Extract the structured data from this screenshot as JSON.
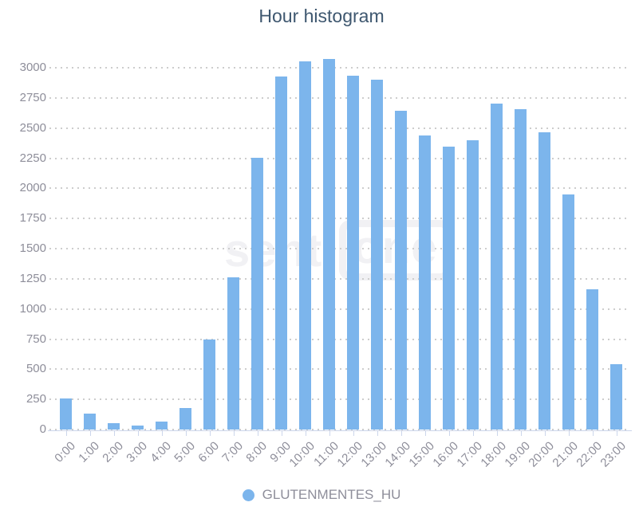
{
  "title": "Hour histogram",
  "watermark": {
    "part1": "senti",
    "part2": "one"
  },
  "legend": {
    "series_label": "GLUTENMENTES_HU"
  },
  "colors": {
    "bar": "#7cb5ec",
    "title_text": "#3e576f",
    "axis_label_text": "#8e8e9a",
    "gridline": "#cdcdcd",
    "axis_line": "#ccd6eb",
    "watermark_text": "#f1f1f4"
  },
  "chart_data": {
    "type": "bar",
    "title": "Hour histogram",
    "categories": [
      "0:00",
      "1:00",
      "2:00",
      "3:00",
      "4:00",
      "5:00",
      "6:00",
      "7:00",
      "8:00",
      "9:00",
      "10:00",
      "11:00",
      "12:00",
      "13:00",
      "14:00",
      "15:00",
      "16:00",
      "17:00",
      "18:00",
      "19:00",
      "20:00",
      "21:00",
      "22:00",
      "23:00"
    ],
    "series": [
      {
        "name": "GLUTENMENTES_HU",
        "values": [
          255,
          130,
          55,
          30,
          65,
          180,
          750,
          1260,
          2255,
          2930,
          3050,
          3075,
          2935,
          2900,
          2640,
          2440,
          2345,
          2400,
          2700,
          2655,
          2465,
          1950,
          1160,
          545
        ]
      }
    ],
    "xlabel": "",
    "ylabel": "",
    "ylim": [
      0,
      3000
    ],
    "ytick_step": 250,
    "grid": "horizontal-dotted",
    "legend_position": "bottom",
    "x_label_rotation": -45
  }
}
